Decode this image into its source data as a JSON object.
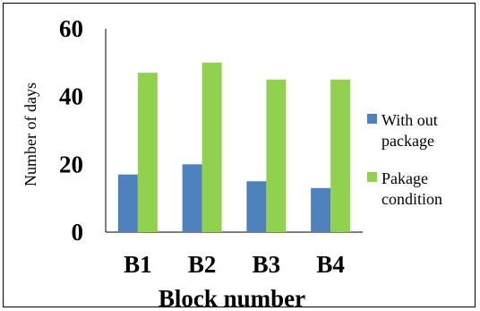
{
  "chart_data": {
    "type": "bar",
    "categories": [
      "B1",
      "B2",
      "B3",
      "B4"
    ],
    "series": [
      {
        "name": "With out package",
        "legend_lines": [
          "With out",
          "package"
        ],
        "color": "#4f81bd",
        "values": [
          17,
          20,
          15,
          13
        ]
      },
      {
        "name": "Pakage condition",
        "legend_lines": [
          "Pakage",
          "condition"
        ],
        "color": "#92d050",
        "values": [
          47,
          50,
          45,
          45
        ]
      }
    ],
    "xlabel": "Block number",
    "ylabel": "Number of days",
    "ylim": [
      0,
      60
    ],
    "yticks": [
      0,
      20,
      40,
      60
    ],
    "grid": false,
    "legend_position": "right"
  }
}
